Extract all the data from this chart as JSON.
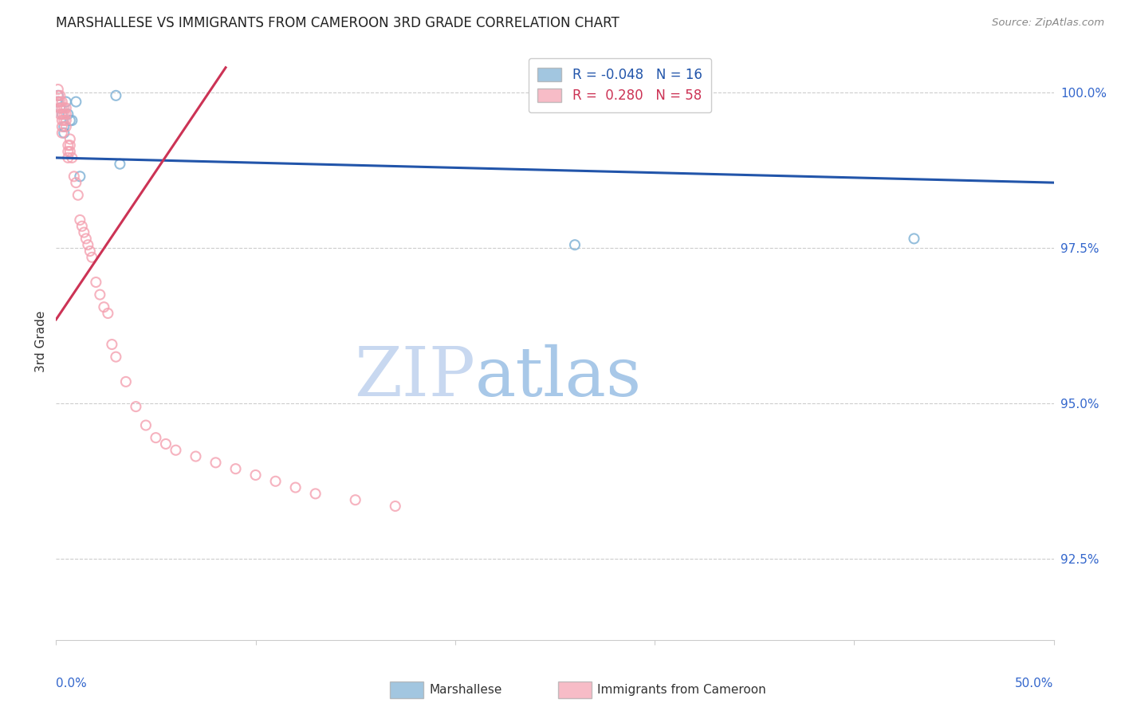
{
  "title": "MARSHALLESE VS IMMIGRANTS FROM CAMEROON 3RD GRADE CORRELATION CHART",
  "source": "Source: ZipAtlas.com",
  "ylabel": "3rd Grade",
  "ylabel_right_labels": [
    "100.0%",
    "97.5%",
    "95.0%",
    "92.5%"
  ],
  "ylabel_right_values": [
    1.0,
    0.975,
    0.95,
    0.925
  ],
  "x_min": 0.0,
  "x_max": 0.5,
  "y_min": 0.912,
  "y_max": 1.008,
  "legend_r_blue": "-0.048",
  "legend_n_blue": "16",
  "legend_r_pink": "0.280",
  "legend_n_pink": "58",
  "blue_scatter_x": [
    0.001,
    0.001,
    0.002,
    0.003,
    0.004,
    0.004,
    0.005,
    0.006,
    0.007,
    0.008,
    0.01,
    0.012,
    0.03,
    0.032,
    0.26,
    0.43
  ],
  "blue_scatter_y": [
    0.9995,
    0.9985,
    0.9975,
    0.9965,
    0.9945,
    0.9935,
    0.9985,
    0.9965,
    0.9955,
    0.9955,
    0.9985,
    0.9865,
    0.9995,
    0.9885,
    0.9755,
    0.9765
  ],
  "pink_scatter_x": [
    0.001,
    0.001,
    0.001,
    0.002,
    0.002,
    0.002,
    0.002,
    0.003,
    0.003,
    0.003,
    0.003,
    0.003,
    0.003,
    0.004,
    0.004,
    0.004,
    0.005,
    0.005,
    0.005,
    0.005,
    0.006,
    0.006,
    0.006,
    0.007,
    0.007,
    0.007,
    0.008,
    0.009,
    0.01,
    0.011,
    0.012,
    0.013,
    0.014,
    0.015,
    0.016,
    0.017,
    0.018,
    0.02,
    0.022,
    0.024,
    0.026,
    0.028,
    0.03,
    0.035,
    0.04,
    0.045,
    0.05,
    0.055,
    0.06,
    0.07,
    0.08,
    0.09,
    0.1,
    0.11,
    0.12,
    0.13,
    0.15,
    0.17
  ],
  "pink_scatter_y": [
    1.0005,
    0.9995,
    0.9985,
    0.9995,
    0.9985,
    0.9975,
    0.9965,
    0.9985,
    0.9975,
    0.9965,
    0.9955,
    0.9945,
    0.9935,
    0.9975,
    0.9965,
    0.9955,
    0.9975,
    0.9965,
    0.9955,
    0.9945,
    0.9915,
    0.9905,
    0.9895,
    0.9925,
    0.9915,
    0.9905,
    0.9895,
    0.9865,
    0.9855,
    0.9835,
    0.9795,
    0.9785,
    0.9775,
    0.9765,
    0.9755,
    0.9745,
    0.9735,
    0.9695,
    0.9675,
    0.9655,
    0.9645,
    0.9595,
    0.9575,
    0.9535,
    0.9495,
    0.9465,
    0.9445,
    0.9435,
    0.9425,
    0.9415,
    0.9405,
    0.9395,
    0.9385,
    0.9375,
    0.9365,
    0.9355,
    0.9345,
    0.9335
  ],
  "blue_line_x": [
    0.0,
    0.5
  ],
  "blue_line_y": [
    0.9895,
    0.9855
  ],
  "pink_line_x": [
    0.0,
    0.085
  ],
  "pink_line_y": [
    0.9635,
    1.004
  ],
  "watermark_zip": "ZIP",
  "watermark_atlas": "atlas",
  "scatter_size": 75,
  "scatter_alpha": 0.45,
  "blue_color": "#7BAFD4",
  "pink_color": "#F4A0B0",
  "blue_line_color": "#2255AA",
  "pink_line_color": "#CC3355",
  "grid_color": "#CCCCCC",
  "title_color": "#222222",
  "source_color": "#888888",
  "axis_color": "#3366CC",
  "watermark_zip_color": "#C8D8F0",
  "watermark_atlas_color": "#A8C8E8"
}
